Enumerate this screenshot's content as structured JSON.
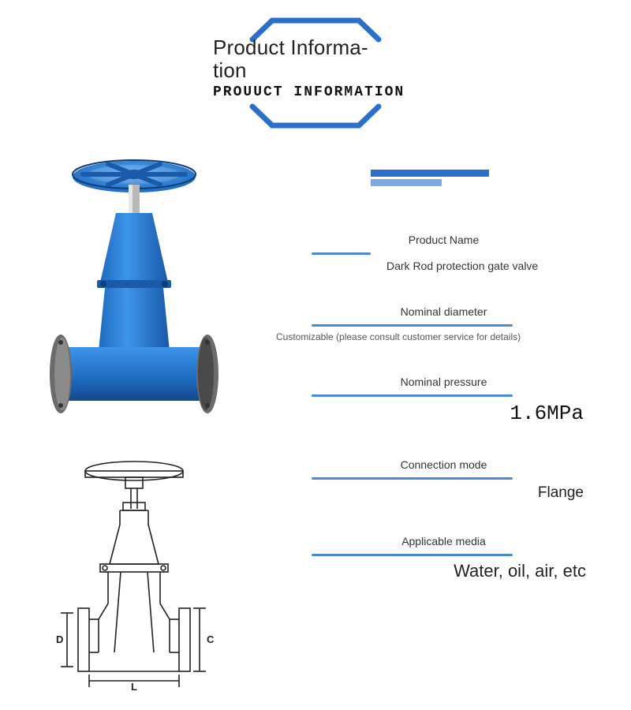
{
  "header": {
    "title_line1": "Product Informa-",
    "title_line2": "tion",
    "subtitle": "PROUUCT INFORMATION"
  },
  "colors": {
    "brand_blue": "#2a6fc9",
    "brand_blue_light": "#6d9de0",
    "valve_blue": "#2d8be8",
    "valve_blue_dark": "#1e6bc0",
    "valve_shadow": "#1a5090",
    "flange_edge": "#555555",
    "diagram_stroke": "#222222",
    "text_dark": "#222222",
    "rule_blue": "#4a8ad4"
  },
  "deco_bars": {
    "bar1_color": "#2a6fc9",
    "bar2_color": "#7aa9e4"
  },
  "specs": [
    {
      "label": "Product Name",
      "value": "Dark Rod protection gate valve",
      "rule_len": "short",
      "value_class": "spec-value"
    },
    {
      "label": "Nominal diameter",
      "value": "Customizable (please consult customer service for details)",
      "rule_len": "long",
      "value_class": "spec-value small"
    },
    {
      "label": "Nominal pressure",
      "value": "1.6MPa",
      "rule_len": "long",
      "value_class": "spec-value big"
    },
    {
      "label": "Connection mode",
      "value": "Flange",
      "rule_len": "long",
      "value_class": "spec-value med"
    },
    {
      "label": "Applicable media",
      "value": "Water, oil, air, etc",
      "rule_len": "long",
      "value_class": "spec-value large"
    }
  ],
  "diagram_labels": {
    "D": "D",
    "C": "C",
    "L": "L"
  }
}
